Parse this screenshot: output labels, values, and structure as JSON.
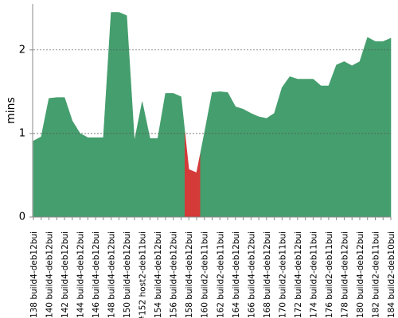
{
  "chart_data": {
    "type": "area",
    "y_label": "mins",
    "categories": [
      "#138 build4-deb12bui",
      null,
      "#140 build4-deb12bui",
      null,
      "#142 build4-deb12bui",
      null,
      "#144 build4-deb12bui",
      null,
      "#146 build4-deb12bui",
      null,
      "#148 build4-deb12bui",
      null,
      "#150 build4-deb12bui",
      null,
      "#152 host2-deb11bui",
      null,
      "#154 build4-deb12bui",
      null,
      "#156 build4-deb12bui",
      null,
      "#158 build4-deb12bui",
      null,
      "#160 build2-deb11bui",
      null,
      "#162 build2-deb11bui",
      null,
      "#164 build4-deb12bui",
      null,
      "#166 build4-deb12bui",
      null,
      "#168 build4-deb12bui",
      null,
      "#170 build2-deb11bui",
      null,
      "#172 build4-deb12bui",
      null,
      "#174 build2-deb11bui",
      null,
      "#176 build2-deb11bui",
      null,
      "#178 build4-deb12bui",
      null,
      "#180 build4-deb12bui",
      null,
      "#182 build2-deb11bui",
      null,
      "#184 build2-deb10bui"
    ],
    "values": [
      0.91,
      0.96,
      1.42,
      1.43,
      1.43,
      1.15,
      1.0,
      0.95,
      0.95,
      0.95,
      2.45,
      2.45,
      2.41,
      0.91,
      1.38,
      0.94,
      0.94,
      1.48,
      1.48,
      1.44,
      0.57,
      0.53,
      1.0,
      1.49,
      1.5,
      1.49,
      1.32,
      1.29,
      1.24,
      1.2,
      1.18,
      1.24,
      1.55,
      1.68,
      1.65,
      1.65,
      1.65,
      1.57,
      1.57,
      1.82,
      1.86,
      1.81,
      1.86,
      2.15,
      2.1,
      2.1,
      2.14
    ],
    "point_colors": [
      "#459e6e",
      "#459e6e",
      "#459e6e",
      "#459e6e",
      "#459e6e",
      "#459e6e",
      "#459e6e",
      "#459e6e",
      "#459e6e",
      "#459e6e",
      "#459e6e",
      "#459e6e",
      "#459e6e",
      "#459e6e",
      "#459e6e",
      "#459e6e",
      "#459e6e",
      "#459e6e",
      "#459e6e",
      "#459e6e",
      "#d33a38",
      "#d33a38",
      "#459e6e",
      "#459e6e",
      "#459e6e",
      "#459e6e",
      "#459e6e",
      "#459e6e",
      "#459e6e",
      "#459e6e",
      "#459e6e",
      "#459e6e",
      "#459e6e",
      "#459e6e",
      "#459e6e",
      "#459e6e",
      "#459e6e",
      "#459e6e",
      "#459e6e",
      "#459e6e",
      "#459e6e",
      "#459e6e",
      "#459e6e",
      "#459e6e",
      "#459e6e",
      "#459e6e",
      "#459e6e"
    ],
    "ylim": [
      0,
      2.55
    ],
    "yticks": [
      0,
      1,
      2
    ],
    "grid": true
  }
}
